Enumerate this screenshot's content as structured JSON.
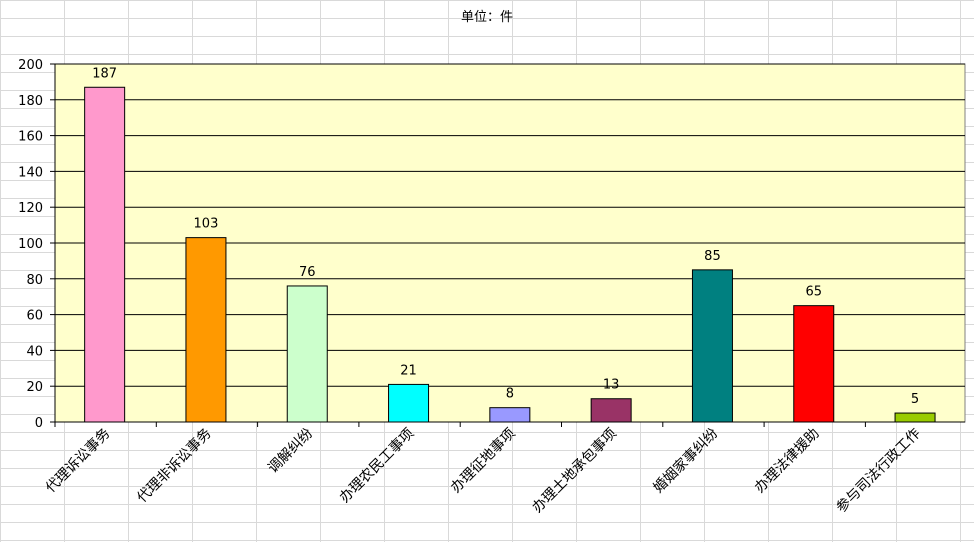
{
  "chart_data": {
    "type": "bar",
    "title": "",
    "subtitle": "单位：件",
    "categories": [
      "代理诉讼事务",
      "代理非诉讼事务",
      "调解纠纷",
      "办理农民工事项",
      "办理征地事项",
      "办理土地承包事项",
      "婚姻家事纠纷",
      "办理法律援助",
      "参与司法行政工作"
    ],
    "values": [
      187,
      103,
      76,
      21,
      8,
      13,
      85,
      65,
      5
    ],
    "colors": [
      "#ff99cc",
      "#ff9900",
      "#ccffcc",
      "#00ffff",
      "#9999ff",
      "#993366",
      "#008080",
      "#ff0000",
      "#99cc00"
    ],
    "ylim": [
      0,
      200
    ],
    "yticks": [
      0,
      20,
      40,
      60,
      80,
      100,
      120,
      140,
      160,
      180,
      200
    ],
    "xlabel": "",
    "ylabel": "",
    "grid": true,
    "plot_background": "#ffffcc"
  }
}
